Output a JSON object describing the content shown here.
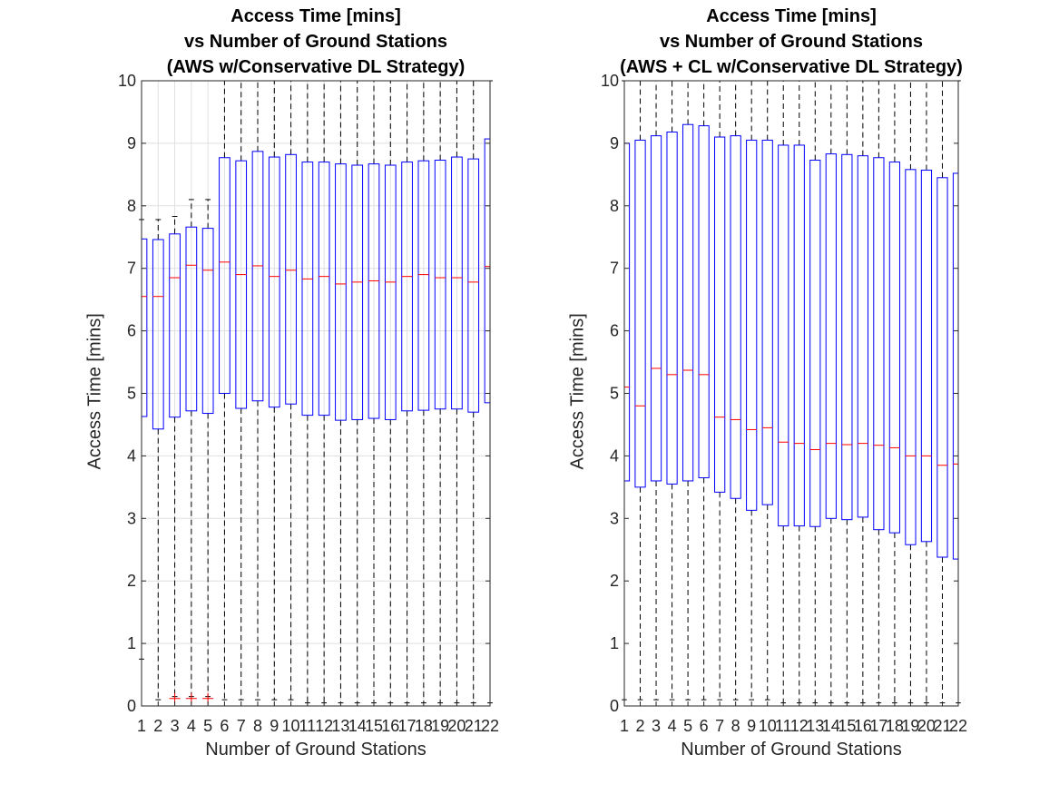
{
  "colors": {
    "box": "#0000ff",
    "median": "#ff0000",
    "whisker": "#000000",
    "outlier": "#ff0000",
    "grid": "#dfdfdf",
    "axis": "#262626"
  },
  "chart_data": [
    {
      "type": "box",
      "title_lines": [
        "Access Time [mins]",
        "vs Number of Ground Stations",
        "(AWS w/Conservative DL Strategy)"
      ],
      "xlabel": "Number of Ground Stations",
      "ylabel": "Access Time [mins]",
      "ylim": [
        0,
        10
      ],
      "yticks": [
        0,
        1,
        2,
        3,
        4,
        5,
        6,
        7,
        8,
        9,
        10
      ],
      "grid": true,
      "categories": [
        "1",
        "2",
        "3",
        "4",
        "5",
        "6",
        "7",
        "8",
        "9",
        "10",
        "11",
        "12",
        "13",
        "14",
        "15",
        "16",
        "17",
        "18",
        "19",
        "20",
        "21",
        "22"
      ],
      "boxes": [
        {
          "min": 0.75,
          "q1": 4.63,
          "median": 6.55,
          "q3": 7.47,
          "max": 7.78,
          "outliers": []
        },
        {
          "min": 0.1,
          "q1": 4.43,
          "median": 6.55,
          "q3": 7.46,
          "max": 7.78,
          "outliers": []
        },
        {
          "min": 0.15,
          "q1": 4.62,
          "median": 6.85,
          "q3": 7.55,
          "max": 7.83,
          "outliers": [
            0.12
          ]
        },
        {
          "min": 0.15,
          "q1": 4.72,
          "median": 7.05,
          "q3": 7.66,
          "max": 8.1,
          "outliers": [
            0.12
          ]
        },
        {
          "min": 0.15,
          "q1": 4.68,
          "median": 6.97,
          "q3": 7.64,
          "max": 8.1,
          "outliers": [
            0.12
          ]
        },
        {
          "min": 0.1,
          "q1": 5.0,
          "median": 7.1,
          "q3": 8.77,
          "max": 10,
          "outliers": []
        },
        {
          "min": 0.1,
          "q1": 4.76,
          "median": 6.9,
          "q3": 8.72,
          "max": 10,
          "outliers": []
        },
        {
          "min": 0.1,
          "q1": 4.88,
          "median": 7.04,
          "q3": 8.87,
          "max": 10,
          "outliers": []
        },
        {
          "min": 0.1,
          "q1": 4.78,
          "median": 6.87,
          "q3": 8.78,
          "max": 10,
          "outliers": []
        },
        {
          "min": 0.1,
          "q1": 4.83,
          "median": 6.97,
          "q3": 8.82,
          "max": 10,
          "outliers": []
        },
        {
          "min": 0.05,
          "q1": 4.65,
          "median": 6.83,
          "q3": 8.7,
          "max": 10,
          "outliers": []
        },
        {
          "min": 0.05,
          "q1": 4.65,
          "median": 6.87,
          "q3": 8.7,
          "max": 10,
          "outliers": []
        },
        {
          "min": 0.05,
          "q1": 4.57,
          "median": 6.75,
          "q3": 8.67,
          "max": 10,
          "outliers": []
        },
        {
          "min": 0.05,
          "q1": 4.58,
          "median": 6.78,
          "q3": 8.65,
          "max": 10,
          "outliers": []
        },
        {
          "min": 0.05,
          "q1": 4.6,
          "median": 6.8,
          "q3": 8.67,
          "max": 10,
          "outliers": []
        },
        {
          "min": 0.05,
          "q1": 4.58,
          "median": 6.78,
          "q3": 8.65,
          "max": 10,
          "outliers": []
        },
        {
          "min": 0.05,
          "q1": 4.72,
          "median": 6.87,
          "q3": 8.7,
          "max": 10,
          "outliers": []
        },
        {
          "min": 0.05,
          "q1": 4.73,
          "median": 6.9,
          "q3": 8.72,
          "max": 10,
          "outliers": []
        },
        {
          "min": 0.05,
          "q1": 4.75,
          "median": 6.85,
          "q3": 8.73,
          "max": 10,
          "outliers": []
        },
        {
          "min": 0.05,
          "q1": 4.75,
          "median": 6.85,
          "q3": 8.78,
          "max": 10,
          "outliers": []
        },
        {
          "min": 0.05,
          "q1": 4.7,
          "median": 6.78,
          "q3": 8.75,
          "max": 10,
          "outliers": []
        },
        {
          "min": 0.05,
          "q1": 4.85,
          "median": 7.03,
          "q3": 9.07,
          "max": 10,
          "outliers": []
        }
      ]
    },
    {
      "type": "box",
      "title_lines": [
        "Access Time [mins]",
        "vs Number of Ground Stations",
        "(AWS + CL w/Conservative DL Strategy)"
      ],
      "xlabel": "Number of Ground Stations",
      "ylabel": "Access Time [mins]",
      "ylim": [
        0,
        10
      ],
      "yticks": [
        0,
        1,
        2,
        3,
        4,
        5,
        6,
        7,
        8,
        9,
        10
      ],
      "grid": false,
      "categories": [
        "1",
        "2",
        "3",
        "4",
        "5",
        "6",
        "7",
        "8",
        "9",
        "10",
        "11",
        "12",
        "13",
        "14",
        "15",
        "16",
        "17",
        "18",
        "19",
        "20",
        "21",
        "22"
      ],
      "boxes": [
        {
          "min": 0.1,
          "q1": 3.6,
          "median": 5.1,
          "q3": 9.0,
          "max": 10,
          "outliers": []
        },
        {
          "min": 0.1,
          "q1": 3.5,
          "median": 4.8,
          "q3": 9.05,
          "max": 10,
          "outliers": []
        },
        {
          "min": 0.1,
          "q1": 3.6,
          "median": 5.4,
          "q3": 9.12,
          "max": 10,
          "outliers": []
        },
        {
          "min": 0.1,
          "q1": 3.55,
          "median": 5.3,
          "q3": 9.18,
          "max": 10,
          "outliers": []
        },
        {
          "min": 0.1,
          "q1": 3.6,
          "median": 5.37,
          "q3": 9.3,
          "max": 10,
          "outliers": []
        },
        {
          "min": 0.1,
          "q1": 3.65,
          "median": 5.3,
          "q3": 9.28,
          "max": 10,
          "outliers": []
        },
        {
          "min": 0.1,
          "q1": 3.42,
          "median": 4.62,
          "q3": 9.1,
          "max": 10,
          "outliers": []
        },
        {
          "min": 0.1,
          "q1": 3.32,
          "median": 4.58,
          "q3": 9.12,
          "max": 10,
          "outliers": []
        },
        {
          "min": 0.1,
          "q1": 3.13,
          "median": 4.42,
          "q3": 9.05,
          "max": 10,
          "outliers": []
        },
        {
          "min": 0.1,
          "q1": 3.22,
          "median": 4.45,
          "q3": 9.05,
          "max": 10,
          "outliers": []
        },
        {
          "min": 0.05,
          "q1": 2.88,
          "median": 4.22,
          "q3": 8.97,
          "max": 10,
          "outliers": []
        },
        {
          "min": 0.05,
          "q1": 2.88,
          "median": 4.2,
          "q3": 8.97,
          "max": 10,
          "outliers": []
        },
        {
          "min": 0.05,
          "q1": 2.87,
          "median": 4.1,
          "q3": 8.73,
          "max": 10,
          "outliers": []
        },
        {
          "min": 0.05,
          "q1": 3.0,
          "median": 4.2,
          "q3": 8.83,
          "max": 10,
          "outliers": []
        },
        {
          "min": 0.05,
          "q1": 2.98,
          "median": 4.18,
          "q3": 8.82,
          "max": 10,
          "outliers": []
        },
        {
          "min": 0.05,
          "q1": 3.02,
          "median": 4.2,
          "q3": 8.8,
          "max": 10,
          "outliers": []
        },
        {
          "min": 0.05,
          "q1": 2.82,
          "median": 4.17,
          "q3": 8.77,
          "max": 10,
          "outliers": []
        },
        {
          "min": 0.05,
          "q1": 2.77,
          "median": 4.13,
          "q3": 8.7,
          "max": 10,
          "outliers": []
        },
        {
          "min": 0.05,
          "q1": 2.58,
          "median": 4.0,
          "q3": 8.58,
          "max": 10,
          "outliers": []
        },
        {
          "min": 0.05,
          "q1": 2.63,
          "median": 4.0,
          "q3": 8.57,
          "max": 10,
          "outliers": []
        },
        {
          "min": 0.05,
          "q1": 2.38,
          "median": 3.85,
          "q3": 8.45,
          "max": 10,
          "outliers": []
        },
        {
          "min": 0.05,
          "q1": 2.35,
          "median": 3.87,
          "q3": 8.52,
          "max": 10,
          "outliers": []
        }
      ]
    }
  ]
}
